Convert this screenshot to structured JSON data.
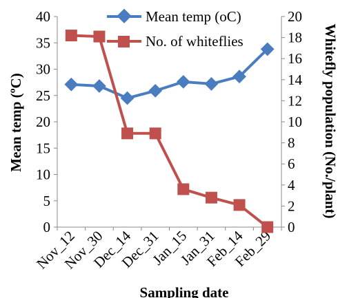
{
  "chart_data": {
    "type": "line",
    "categories": [
      "Nov_12",
      "Nov_30",
      "Dec_14",
      "Dec_31",
      "Jan_15",
      "Jan_31",
      "Feb_14",
      "Feb_29"
    ],
    "xlabel": "Sampling date",
    "ylabel_left": "Mean temp (ºC)",
    "ylabel_right": "Whitefly population (No./plant)",
    "ylim_left": [
      0,
      40
    ],
    "ylim_right": [
      0,
      20
    ],
    "yticks_left": [
      0,
      5,
      10,
      15,
      20,
      25,
      30,
      35,
      40
    ],
    "yticks_right": [
      0,
      2,
      4,
      6,
      8,
      10,
      12,
      14,
      16,
      18,
      20
    ],
    "grid": false,
    "legend_position": "top-right",
    "series": [
      {
        "name": "Mean temp (oC)",
        "axis": "left",
        "marker": "diamond",
        "color": "#4a7dbf",
        "values": [
          27.1,
          26.8,
          24.5,
          25.9,
          27.6,
          27.2,
          28.6,
          33.8
        ]
      },
      {
        "name": "No. of whiteflies",
        "axis": "right",
        "marker": "square",
        "color": "#c0504d",
        "values": [
          18.2,
          18.1,
          8.9,
          8.9,
          3.6,
          2.8,
          2.1,
          0
        ]
      }
    ]
  }
}
